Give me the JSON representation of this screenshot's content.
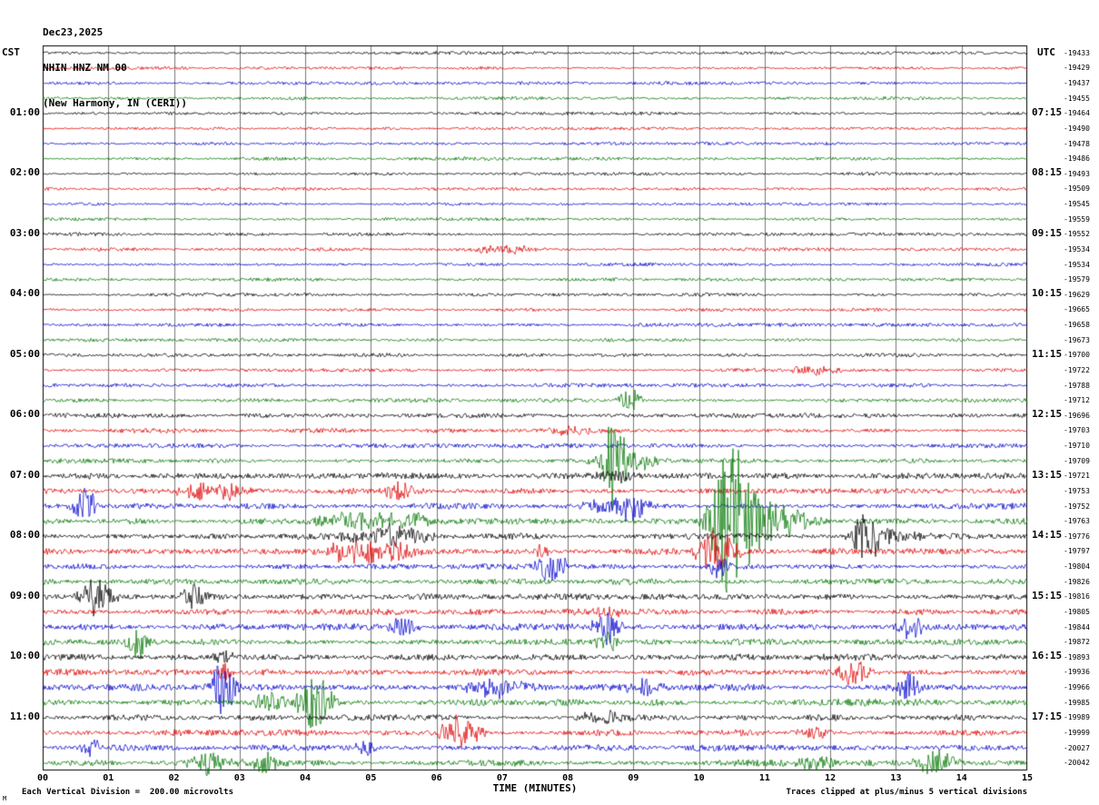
{
  "title": {
    "date": "Dec23,2025",
    "station": "NHIN HNZ NM 00",
    "location": "(New Harmony, IN (CERI))"
  },
  "axes": {
    "left_header": "CST",
    "right_header": "UTC",
    "left_times": [
      "01:00",
      "02:00",
      "03:00",
      "04:00",
      "05:00",
      "06:00",
      "07:00",
      "08:00",
      "09:00",
      "10:00",
      "11:00"
    ],
    "right_times": [
      "07:15",
      "08:15",
      "09:15",
      "10:15",
      "11:15",
      "12:15",
      "13:15",
      "14:15",
      "15:15",
      "16:15",
      "17:15"
    ],
    "x_ticks": [
      "00",
      "01",
      "02",
      "03",
      "04",
      "05",
      "06",
      "07",
      "08",
      "09",
      "10",
      "11",
      "12",
      "13",
      "14",
      "15"
    ],
    "x_label": "TIME (MINUTES)"
  },
  "footer": {
    "left": "Each Vertical Division =  200.00 microvolts",
    "right": "Traces clipped at plus/minus 5 vertical divisions",
    "corner": "M"
  },
  "chart_data": {
    "type": "line",
    "description": "12-hour helicorder seismogram; 48 traces of 15 minutes each; trace colors cycle black/red/blue/green; events are noise bursts (t in minutes, amp in px, dur as gaussian sigma in minutes)",
    "rows": 48,
    "minutes_per_row": 15,
    "start_time_cst": "00:00",
    "units_per_division": "200.00 microvolts",
    "clip_divisions": 5,
    "row_colors": [
      "#000000",
      "#dd0000",
      "#0000cc",
      "#007700"
    ],
    "grid_color": "#777777",
    "baseline_values": [
      "-19433",
      "-19429",
      "-19437",
      "-19455",
      "-19464",
      "-19490",
      "-19478",
      "-19486",
      "-19493",
      "-19509",
      "-19545",
      "-19559",
      "-19552",
      "-19534",
      "-19534",
      "-19579",
      "-19629",
      "-19665",
      "-19658",
      "-19673",
      "-19700",
      "-19722",
      "-19788",
      "-19712",
      "-19696",
      "-19703",
      "-19710",
      "-19709",
      "-19721",
      "-19753",
      "-19752",
      "-19763",
      "-19776",
      "-19797",
      "-19804",
      "-19826",
      "-19816",
      "-19805",
      "-19844",
      "-19872",
      "-19893",
      "-19936",
      "-19966",
      "-19985",
      "-19989",
      "-19999",
      "-20027",
      "-20042"
    ],
    "noise_amp": [
      1.4,
      1.3,
      1.3,
      1.3,
      1.3,
      1.2,
      1.3,
      1.3,
      1.3,
      1.3,
      1.2,
      1.3,
      1.4,
      1.4,
      1.3,
      1.4,
      1.5,
      1.4,
      1.4,
      1.4,
      1.5,
      1.5,
      1.6,
      1.7,
      1.9,
      1.8,
      1.9,
      2.0,
      2.6,
      2.4,
      2.4,
      2.5,
      2.6,
      2.5,
      2.4,
      2.3,
      2.8,
      2.6,
      2.7,
      2.7,
      2.7,
      2.8,
      2.8,
      2.8,
      2.6,
      2.6,
      2.6,
      2.7
    ],
    "events": [
      {
        "row": 13,
        "t": 7.0,
        "amp": 4,
        "dur": 0.35
      },
      {
        "row": 21,
        "t": 11.7,
        "amp": 4,
        "dur": 0.25
      },
      {
        "row": 23,
        "t": 8.95,
        "amp": 11,
        "dur": 0.12
      },
      {
        "row": 25,
        "t": 8.05,
        "amp": 4,
        "dur": 0.25
      },
      {
        "row": 27,
        "t": 8.7,
        "amp": 45,
        "dur": 0.11
      },
      {
        "row": 27,
        "t": 8.9,
        "amp": 12,
        "dur": 0.3
      },
      {
        "row": 28,
        "t": 8.7,
        "amp": 6,
        "dur": 0.2
      },
      {
        "row": 29,
        "t": 2.45,
        "amp": 8,
        "dur": 0.3
      },
      {
        "row": 29,
        "t": 2.8,
        "amp": 7,
        "dur": 0.2
      },
      {
        "row": 29,
        "t": 5.45,
        "amp": 10,
        "dur": 0.15
      },
      {
        "row": 30,
        "t": 0.65,
        "amp": 16,
        "dur": 0.14
      },
      {
        "row": 30,
        "t": 8.45,
        "amp": 6,
        "dur": 0.2
      },
      {
        "row": 30,
        "t": 8.95,
        "amp": 15,
        "dur": 0.18
      },
      {
        "row": 31,
        "t": 4.9,
        "amp": 8,
        "dur": 0.45
      },
      {
        "row": 31,
        "t": 5.6,
        "amp": 7,
        "dur": 0.3
      },
      {
        "row": 31,
        "t": 10.45,
        "amp": 85,
        "dur": 0.18
      },
      {
        "row": 31,
        "t": 10.8,
        "amp": 28,
        "dur": 0.25
      },
      {
        "row": 31,
        "t": 11.3,
        "amp": 12,
        "dur": 0.35
      },
      {
        "row": 32,
        "t": 5.3,
        "amp": 11,
        "dur": 0.4
      },
      {
        "row": 32,
        "t": 12.55,
        "amp": 26,
        "dur": 0.14
      },
      {
        "row": 32,
        "t": 12.85,
        "amp": 8,
        "dur": 0.3
      },
      {
        "row": 33,
        "t": 4.7,
        "amp": 9,
        "dur": 0.3
      },
      {
        "row": 33,
        "t": 5.3,
        "amp": 9,
        "dur": 0.3
      },
      {
        "row": 33,
        "t": 7.6,
        "amp": 6,
        "dur": 0.1
      },
      {
        "row": 33,
        "t": 10.25,
        "amp": 22,
        "dur": 0.2
      },
      {
        "row": 34,
        "t": 7.75,
        "amp": 13,
        "dur": 0.18
      },
      {
        "row": 34,
        "t": 10.3,
        "amp": 10,
        "dur": 0.14
      },
      {
        "row": 36,
        "t": 0.8,
        "amp": 17,
        "dur": 0.18
      },
      {
        "row": 36,
        "t": 2.3,
        "amp": 12,
        "dur": 0.12
      },
      {
        "row": 37,
        "t": 8.55,
        "amp": 5,
        "dur": 0.2
      },
      {
        "row": 38,
        "t": 5.5,
        "amp": 10,
        "dur": 0.15
      },
      {
        "row": 38,
        "t": 8.6,
        "amp": 14,
        "dur": 0.14
      },
      {
        "row": 38,
        "t": 13.2,
        "amp": 12,
        "dur": 0.14
      },
      {
        "row": 39,
        "t": 1.45,
        "amp": 15,
        "dur": 0.11
      },
      {
        "row": 39,
        "t": 8.6,
        "amp": 12,
        "dur": 0.11
      },
      {
        "row": 40,
        "t": 2.75,
        "amp": 8,
        "dur": 0.1
      },
      {
        "row": 41,
        "t": 2.75,
        "amp": 8,
        "dur": 0.1
      },
      {
        "row": 41,
        "t": 12.35,
        "amp": 12,
        "dur": 0.18
      },
      {
        "row": 42,
        "t": 2.75,
        "amp": 27,
        "dur": 0.12
      },
      {
        "row": 42,
        "t": 6.9,
        "amp": 8,
        "dur": 0.3
      },
      {
        "row": 42,
        "t": 9.2,
        "amp": 8,
        "dur": 0.2
      },
      {
        "row": 42,
        "t": 13.2,
        "amp": 14,
        "dur": 0.12
      },
      {
        "row": 43,
        "t": 3.45,
        "amp": 10,
        "dur": 0.2
      },
      {
        "row": 43,
        "t": 4.15,
        "amp": 28,
        "dur": 0.17
      },
      {
        "row": 44,
        "t": 8.5,
        "amp": 7,
        "dur": 0.2
      },
      {
        "row": 45,
        "t": 6.35,
        "amp": 17,
        "dur": 0.2
      },
      {
        "row": 45,
        "t": 11.8,
        "amp": 6,
        "dur": 0.2
      },
      {
        "row": 46,
        "t": 0.75,
        "amp": 9,
        "dur": 0.1
      },
      {
        "row": 46,
        "t": 4.9,
        "amp": 10,
        "dur": 0.1
      },
      {
        "row": 47,
        "t": 2.55,
        "amp": 12,
        "dur": 0.2
      },
      {
        "row": 47,
        "t": 3.4,
        "amp": 9,
        "dur": 0.15
      },
      {
        "row": 47,
        "t": 11.8,
        "amp": 8,
        "dur": 0.2
      },
      {
        "row": 47,
        "t": 13.6,
        "amp": 12,
        "dur": 0.2
      }
    ]
  }
}
